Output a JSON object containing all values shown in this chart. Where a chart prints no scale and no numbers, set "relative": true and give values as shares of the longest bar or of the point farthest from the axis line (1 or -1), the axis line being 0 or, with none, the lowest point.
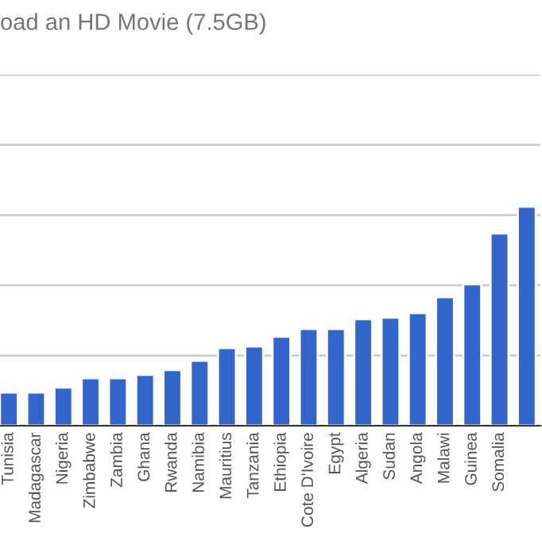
{
  "chart_data": {
    "type": "bar",
    "title": "oad an HD Movie (7.5GB)",
    "categories": [
      "Tunisia",
      "Madagascar",
      "Nigeria",
      "Zimbabwe",
      "Zambia",
      "Ghana",
      "Rwanda",
      "Namibia",
      "Mauritius",
      "Tanzania",
      "Ethiopia",
      "Cote D'Ivoire",
      "Egypt",
      "Algeria",
      "Sudan",
      "Angola",
      "Malawi",
      "Guinea",
      "Somalia",
      null
    ],
    "values": [
      0.152,
      0.152,
      0.174,
      0.217,
      0.217,
      0.232,
      0.254,
      0.297,
      0.355,
      0.362,
      0.406,
      0.442,
      0.442,
      0.486,
      0.493,
      0.514,
      0.587,
      0.645,
      0.877,
      1
    ],
    "color": "#3366cc",
    "relative": true,
    "grid": "y"
  }
}
